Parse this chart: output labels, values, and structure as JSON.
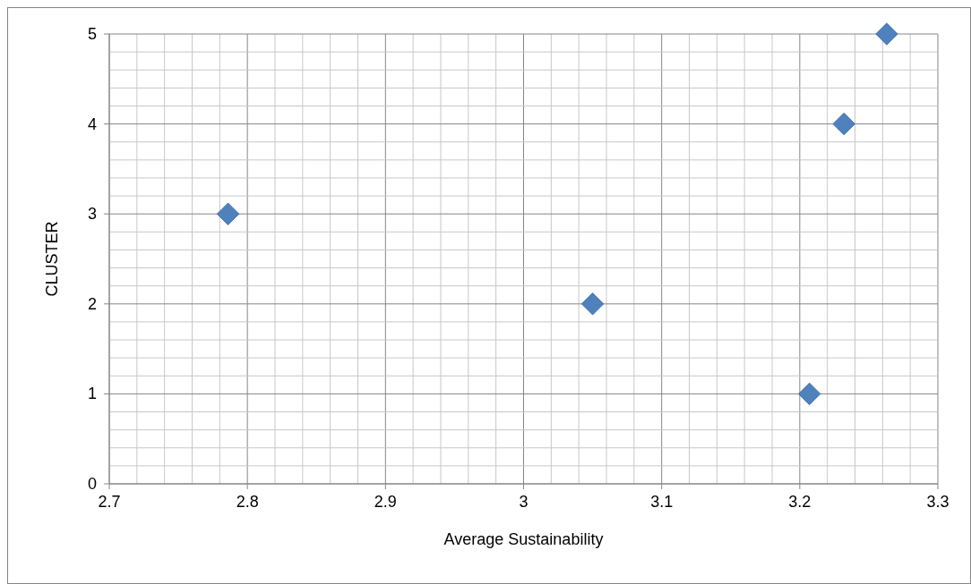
{
  "chart_data": {
    "type": "scatter",
    "xlabel": "Average Sustainability",
    "ylabel": "CLUSTER",
    "x": [
      3.207,
      3.05,
      2.786,
      3.232,
      3.263
    ],
    "values": [
      1,
      2,
      3,
      4,
      5
    ],
    "color": "#4f81bd",
    "marker": "diamond",
    "grid": true,
    "xlim": [
      2.7,
      3.3
    ],
    "xticks": [
      {
        "value": 2.7,
        "label": "2.7"
      },
      {
        "value": 2.72,
        "label": null
      },
      {
        "value": 2.74,
        "label": null
      },
      {
        "value": 2.76,
        "label": null
      },
      {
        "value": 2.78,
        "label": null
      },
      {
        "value": 2.8,
        "label": "2.8"
      },
      {
        "value": 2.82,
        "label": null
      },
      {
        "value": 2.84,
        "label": null
      },
      {
        "value": 2.86,
        "label": null
      },
      {
        "value": 2.88,
        "label": null
      },
      {
        "value": 2.9,
        "label": "2.9"
      },
      {
        "value": 2.92,
        "label": null
      },
      {
        "value": 2.94,
        "label": null
      },
      {
        "value": 2.96,
        "label": null
      },
      {
        "value": 2.98,
        "label": null
      },
      {
        "value": 3,
        "label": "3"
      },
      {
        "value": 3.02,
        "label": null
      },
      {
        "value": 3.04,
        "label": null
      },
      {
        "value": 3.06,
        "label": null
      },
      {
        "value": 3.08,
        "label": null
      },
      {
        "value": 3.1,
        "label": "3.1"
      },
      {
        "value": 3.12,
        "label": null
      },
      {
        "value": 3.14,
        "label": null
      },
      {
        "value": 3.16,
        "label": null
      },
      {
        "value": 3.18,
        "label": null
      },
      {
        "value": 3.2,
        "label": "3.2"
      },
      {
        "value": 3.22,
        "label": null
      },
      {
        "value": 3.24,
        "label": null
      },
      {
        "value": 3.26,
        "label": null
      },
      {
        "value": 3.28,
        "label": null
      },
      {
        "value": 3.3,
        "label": "3.3"
      }
    ],
    "ylim": [
      0,
      5
    ],
    "yticks": [
      {
        "value": 0,
        "label": "0"
      },
      {
        "value": 0.2,
        "label": null
      },
      {
        "value": 0.4,
        "label": null
      },
      {
        "value": 0.6,
        "label": null
      },
      {
        "value": 0.8,
        "label": null
      },
      {
        "value": 1,
        "label": "1"
      },
      {
        "value": 1.2,
        "label": null
      },
      {
        "value": 1.4,
        "label": null
      },
      {
        "value": 1.6,
        "label": null
      },
      {
        "value": 1.8,
        "label": null
      },
      {
        "value": 2,
        "label": "2"
      },
      {
        "value": 2.2,
        "label": null
      },
      {
        "value": 2.4,
        "label": null
      },
      {
        "value": 2.6,
        "label": null
      },
      {
        "value": 2.8,
        "label": null
      },
      {
        "value": 3,
        "label": "3"
      },
      {
        "value": 3.2,
        "label": null
      },
      {
        "value": 3.4,
        "label": null
      },
      {
        "value": 3.6,
        "label": null
      },
      {
        "value": 3.8,
        "label": null
      },
      {
        "value": 4,
        "label": "4"
      },
      {
        "value": 4.2,
        "label": null
      },
      {
        "value": 4.4,
        "label": null
      },
      {
        "value": 4.6,
        "label": null
      },
      {
        "value": 4.8,
        "label": null
      },
      {
        "value": 5,
        "label": "5"
      }
    ]
  }
}
